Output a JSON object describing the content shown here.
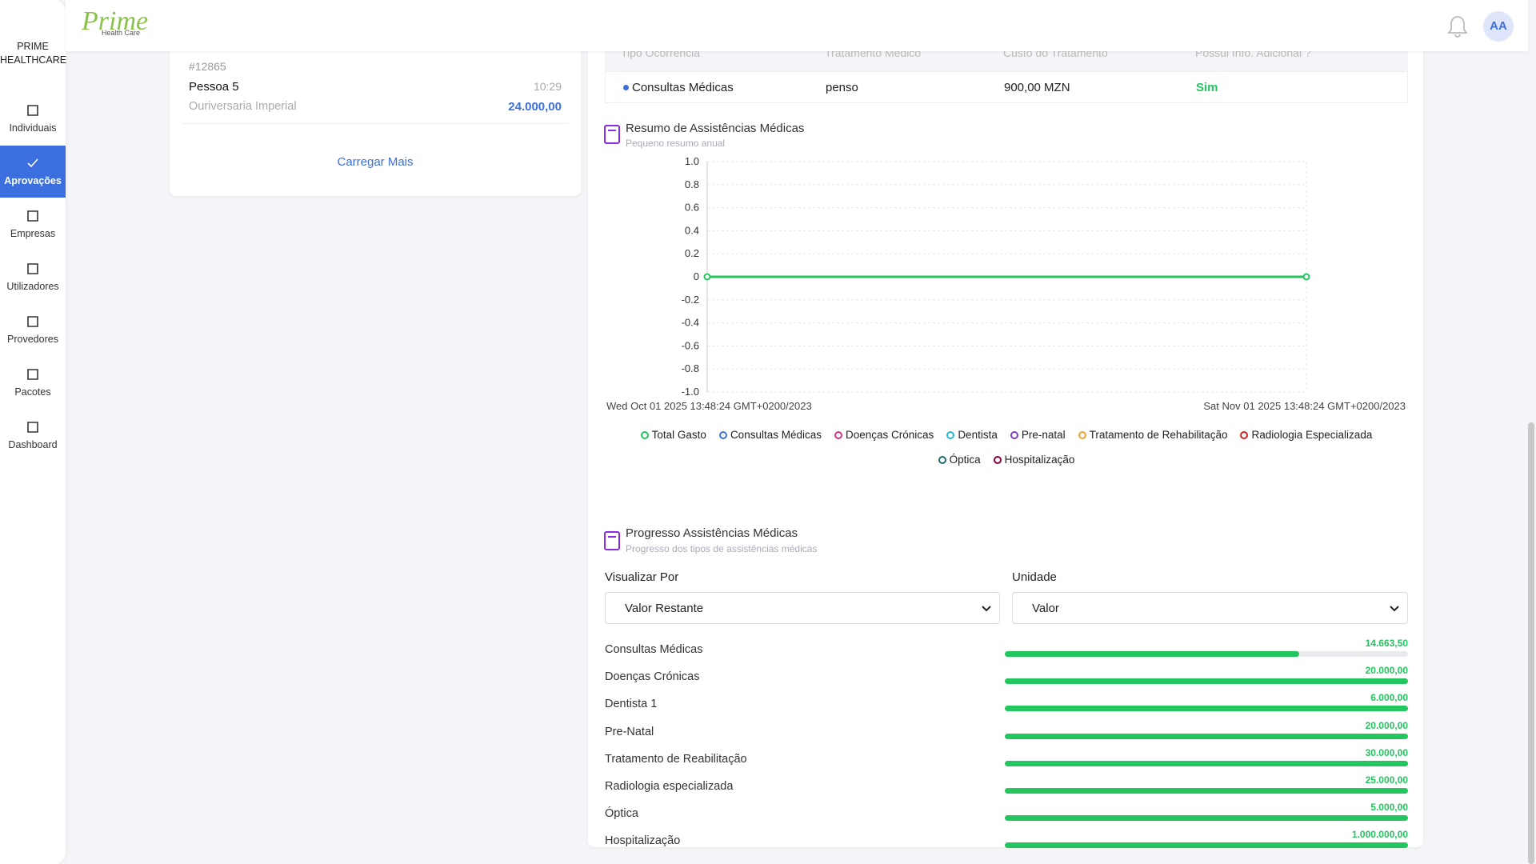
{
  "sidebar": {
    "brand": [
      "PRIME",
      "HEALTHCARE"
    ],
    "nav": [
      {
        "label": "Individuais",
        "active": false
      },
      {
        "label": "Aprovações",
        "active": true
      },
      {
        "label": "Empresas",
        "active": false
      },
      {
        "label": "Utilizadores",
        "active": false
      },
      {
        "label": "Provedores",
        "active": false
      },
      {
        "label": "Pacotes",
        "active": false
      },
      {
        "label": "Dashboard",
        "active": false
      }
    ]
  },
  "header": {
    "logo": "Prime",
    "logo_sub": "Health Care",
    "avatar": "AA"
  },
  "request_card": {
    "id": "#12865",
    "name": "Pessoa 5",
    "time": "10:29",
    "company": "Ouriversaria Imperial",
    "amount": "24.000,00",
    "load_more": "Carregar Mais"
  },
  "table": {
    "columns": [
      "Tipo Ocorrência",
      "Tratamento Médico",
      "Custo do Tratamento",
      "Possui Info. Adicional ?"
    ],
    "rows": [
      [
        "Consultas Médicas",
        "penso",
        "900,00 MZN",
        "Sim"
      ]
    ]
  },
  "chart_data": {
    "type": "line",
    "title": "Resumo de Assistências Médicas",
    "subtitle": "Pequeno resumo anual",
    "categories": [
      "Wed Oct 01 2025 13:48:24 GMT+0200/2023",
      "Sat Nov 01 2025 13:48:24 GMT+0200/2023"
    ],
    "series": [
      {
        "name": "Total Gasto",
        "color": "#22c55e",
        "values": [
          0,
          0
        ]
      },
      {
        "name": "Consultas Médicas",
        "color": "#3b6fe0",
        "values": [
          null,
          null
        ]
      },
      {
        "name": "Doenças Crónicas",
        "color": "#d63384",
        "values": [
          null,
          null
        ]
      },
      {
        "name": "Dentista",
        "color": "#22b8cf",
        "values": [
          null,
          null
        ]
      },
      {
        "name": "Pre-natal",
        "color": "#7b3fc0",
        "values": [
          null,
          null
        ]
      },
      {
        "name": "Tratamento de Rehabilitação",
        "color": "#f0a030",
        "values": [
          null,
          null
        ]
      },
      {
        "name": "Radiologia Especializada",
        "color": "#d02020",
        "values": [
          null,
          null
        ]
      },
      {
        "name": "Óptica",
        "color": "#1a6a6a",
        "values": [
          null,
          null
        ]
      },
      {
        "name": "Hospitalização",
        "color": "#800040",
        "values": [
          null,
          null
        ]
      }
    ],
    "ylim": [
      -1,
      1
    ],
    "yticks": [
      {
        "value": 1,
        "label": "1.0"
      },
      0.8,
      0.6,
      0.4,
      0.2,
      0,
      -0.2,
      -0.4,
      -0.6,
      -0.8,
      {
        "value": -1,
        "label": "-1.0"
      }
    ],
    "grid": true
  },
  "progress": {
    "title": "Progresso Assistências Médicas",
    "subtitle": "Progresso dos tipos de assistências médicas",
    "view_label": "Visualizar Por",
    "view_value": "Valor Restante",
    "unit_label": "Unidade",
    "unit_value": "Valor",
    "color": "#22c55e",
    "items": [
      {
        "label": "Consultas Médicas",
        "amount": "14.663,50",
        "percent": 73
      },
      {
        "label": "Doenças Crónicas",
        "amount": "20.000,00",
        "percent": 100
      },
      {
        "label": "Dentista 1",
        "amount": "6.000,00",
        "percent": 100
      },
      {
        "label": "Pre-Natal",
        "amount": "20.000,00",
        "percent": 100
      },
      {
        "label": "Tratamento de Reabilitação",
        "amount": "30.000,00",
        "percent": 100
      },
      {
        "label": "Radiologia especializada",
        "amount": "25.000,00",
        "percent": 100
      },
      {
        "label": "Óptica",
        "amount": "5.000,00",
        "percent": 100
      },
      {
        "label": "Hospitalização",
        "amount": "1.000.000,00",
        "percent": 100
      }
    ]
  }
}
